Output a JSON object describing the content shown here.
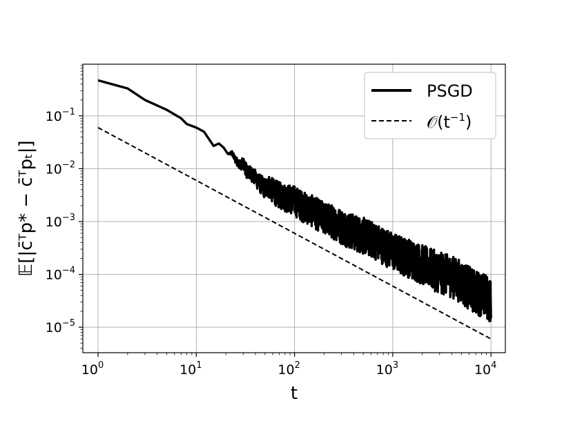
{
  "chart_data": {
    "type": "line",
    "xscale": "log",
    "yscale": "log",
    "xlim": [
      0.7,
      14000
    ],
    "ylim": [
      3.3e-06,
      0.95
    ],
    "grid": true,
    "legend_position": "top-right",
    "xlabel": "t",
    "ylabel": "𝔼[|c̄ᵀp* − c̄ᵀpₜ|]",
    "x_ticks": [
      {
        "base": "10",
        "exp": "0",
        "value": 1
      },
      {
        "base": "10",
        "exp": "1",
        "value": 10
      },
      {
        "base": "10",
        "exp": "2",
        "value": 100
      },
      {
        "base": "10",
        "exp": "3",
        "value": 1000
      },
      {
        "base": "10",
        "exp": "4",
        "value": 10000
      }
    ],
    "y_ticks": [
      {
        "base": "10",
        "exp": "−5",
        "value": 1e-05
      },
      {
        "base": "10",
        "exp": "−4",
        "value": 0.0001
      },
      {
        "base": "10",
        "exp": "−3",
        "value": 0.001
      },
      {
        "base": "10",
        "exp": "−2",
        "value": 0.01
      },
      {
        "base": "10",
        "exp": "−1",
        "value": 0.1
      }
    ],
    "series": [
      {
        "name": "PSGD",
        "color": "#000000",
        "style": "solid",
        "x": [
          1,
          2,
          3,
          5,
          7,
          8,
          10,
          12,
          13,
          15,
          17,
          19,
          21,
          23,
          25,
          28,
          30,
          33,
          36,
          40,
          45,
          50,
          55,
          60,
          70,
          80,
          90,
          100,
          120,
          150,
          200,
          250,
          300,
          400,
          500,
          700,
          1000,
          1500,
          2000,
          3000,
          4000,
          5000,
          6000,
          7000,
          8000,
          9000,
          10000
        ],
        "y": [
          0.47,
          0.33,
          0.2,
          0.13,
          0.09,
          0.07,
          0.06,
          0.05,
          0.04,
          0.027,
          0.03,
          0.025,
          0.019,
          0.02,
          0.015,
          0.012,
          0.013,
          0.009,
          0.0085,
          0.007,
          0.0055,
          0.0045,
          0.005,
          0.0042,
          0.0035,
          0.0032,
          0.003,
          0.0028,
          0.0022,
          0.0018,
          0.0013,
          0.0011,
          0.0009,
          0.0007,
          0.0006,
          0.00045,
          0.0003,
          0.00022,
          0.00017,
          0.00012,
          0.0001,
          8e-05,
          6e-05,
          5e-05,
          4.5e-05,
          4e-05,
          3e-05
        ],
        "noise_band_low": [
          1,
          1,
          1,
          1,
          1,
          1,
          1,
          1,
          1,
          1,
          1,
          1,
          1,
          0.9,
          0.85,
          0.8,
          0.75,
          0.7,
          0.7,
          0.65,
          0.62,
          0.6,
          0.55,
          0.52,
          0.5,
          0.48,
          0.47,
          0.45,
          0.45,
          0.44,
          0.43,
          0.42,
          0.41,
          0.4,
          0.4,
          0.4,
          0.39,
          0.38,
          0.37,
          0.36,
          0.36,
          0.35,
          0.35,
          0.35,
          0.35,
          0.35,
          0.4
        ],
        "noise_band_high": [
          1,
          1,
          1,
          1,
          1,
          1,
          1,
          1,
          1,
          1,
          1,
          1,
          1,
          1.1,
          1.15,
          1.2,
          1.25,
          1.3,
          1.3,
          1.35,
          1.4,
          1.45,
          1.5,
          1.55,
          1.6,
          1.6,
          1.65,
          1.7,
          1.7,
          1.75,
          1.8,
          1.85,
          1.9,
          1.95,
          2.0,
          2.0,
          2.05,
          2.1,
          2.15,
          2.2,
          2.25,
          2.3,
          2.35,
          2.4,
          2.45,
          2.5,
          2.6
        ]
      },
      {
        "name": "𝒪(t⁻¹)",
        "color": "#000000",
        "style": "dashed",
        "x": [
          1,
          10000
        ],
        "y": [
          0.06,
          6e-06
        ]
      }
    ]
  },
  "legend": {
    "items": [
      {
        "label": "PSGD",
        "style": "solid"
      },
      {
        "label": "𝒪(t",
        "exp": "−1",
        "suffix": ")",
        "style": "dashed"
      }
    ]
  }
}
